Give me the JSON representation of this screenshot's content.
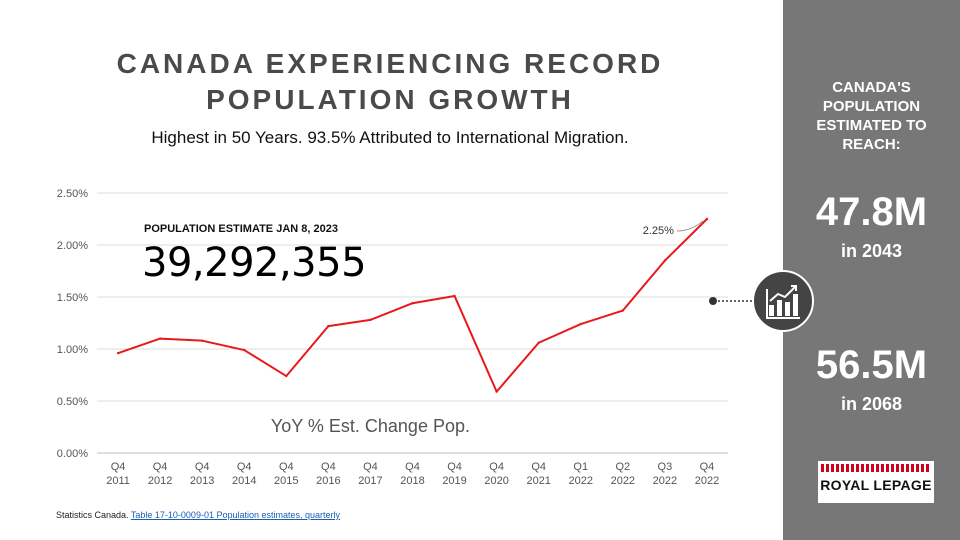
{
  "title": {
    "line1": "CANADA EXPERIENCING RECORD",
    "line2": "POPULATION GROWTH"
  },
  "subtitle": "Highest in 50 Years. 93.5% Attributed to International Migration.",
  "population_label": "POPULATION ESTIMATE JAN 8, 2023",
  "population_value": "39,292,355",
  "sidebar": {
    "heading": [
      "CANADA'S",
      "POPULATION",
      "ESTIMATED TO",
      "REACH:"
    ],
    "estimate1_value": "47.8M",
    "estimate1_year": "in 2043",
    "estimate2_value": "56.5M",
    "estimate2_year": "in 2068"
  },
  "logo": {
    "text": "ROYAL LEPAGE"
  },
  "source": {
    "prefix": "Statistics Canada.",
    "link": "Table 17-10-0009-01  Population estimates, quarterly"
  },
  "chart_data": {
    "type": "line",
    "categories": [
      [
        "Q4",
        "2011"
      ],
      [
        "Q4",
        "2012"
      ],
      [
        "Q4",
        "2013"
      ],
      [
        "Q4",
        "2014"
      ],
      [
        "Q4",
        "2015"
      ],
      [
        "Q4",
        "2016"
      ],
      [
        "Q4",
        "2017"
      ],
      [
        "Q4",
        "2018"
      ],
      [
        "Q4",
        "2019"
      ],
      [
        "Q4",
        "2020"
      ],
      [
        "Q4",
        "2021"
      ],
      [
        "Q1",
        "2022"
      ],
      [
        "Q2",
        "2022"
      ],
      [
        "Q3",
        "2022"
      ],
      [
        "Q4",
        "2022"
      ]
    ],
    "series": [
      {
        "values": [
          0.96,
          1.1,
          1.08,
          0.99,
          0.74,
          1.22,
          1.28,
          1.44,
          1.51,
          0.59,
          1.06,
          1.24,
          1.37,
          1.85,
          2.25
        ],
        "color": "#e8191b"
      }
    ],
    "yticks": [
      "0.00%",
      "0.50%",
      "1.00%",
      "1.50%",
      "2.00%",
      "2.50%"
    ],
    "ylim": [
      0,
      2.5
    ],
    "annotation": "2.25%",
    "inner_label": "YoY % Est. Change Pop.",
    "grid": true
  }
}
